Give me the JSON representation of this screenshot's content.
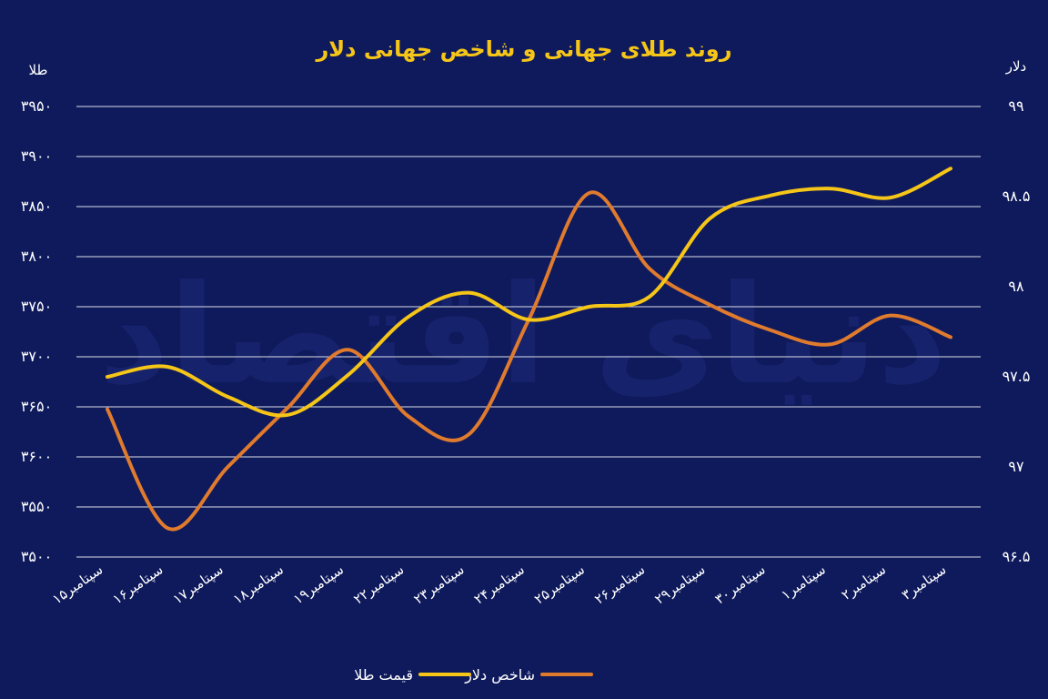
{
  "chart_data": {
    "type": "line",
    "title": "روند طلای جهانی و شاخص جهانی دلار",
    "watermark": "دنیای اقتصاد",
    "left_axis": {
      "label": "طلا",
      "ticks": [
        "۳۵۰۰",
        "۳۵۵۰",
        "۳۶۰۰",
        "۳۶۵۰",
        "۳۷۰۰",
        "۳۷۵۰",
        "۳۸۰۰",
        "۳۸۵۰",
        "۳۹۰۰",
        "۳۹۵۰"
      ],
      "ylim": [
        3500,
        3950
      ]
    },
    "right_axis": {
      "label": "دلار",
      "ticks": [
        "۹۶.۵",
        "۹۷",
        "۹۷.۵",
        "۹۸",
        "۹۸.۵",
        "۹۹"
      ],
      "ylim": [
        96.5,
        99
      ]
    },
    "categories": [
      "۱۵سپتامبر",
      "۱۶سپتامبر",
      "۱۷سپتامبر",
      "۱۸سپتامبر",
      "۱۹سپتامبر",
      "۲۲سپتامبر",
      "۲۳سپتامبر",
      "۲۴سپتامبر",
      "۲۵سپتامبر",
      "۲۶سپتامبر",
      "۲۹سپتامبر",
      "۳۰سپتامبر",
      "۱سپتامبر",
      "۲سپتامبر",
      "۳سپتامبر"
    ],
    "series": [
      {
        "name": "قیمت طلا",
        "axis": "left",
        "color": "#f5c518",
        "values": [
          3680,
          3690,
          3660,
          3642,
          3682,
          3740,
          3764,
          3737,
          3750,
          3760,
          3838,
          3861,
          3868,
          3859,
          3888
        ]
      },
      {
        "name": "شاخص دلار",
        "axis": "right",
        "color": "#e07b2e",
        "values": [
          97.32,
          96.66,
          97.0,
          97.33,
          97.65,
          97.28,
          97.18,
          97.82,
          98.52,
          98.1,
          97.9,
          97.76,
          97.68,
          97.84,
          97.72
        ]
      }
    ],
    "grid": true,
    "legend_position": "bottom-center"
  }
}
